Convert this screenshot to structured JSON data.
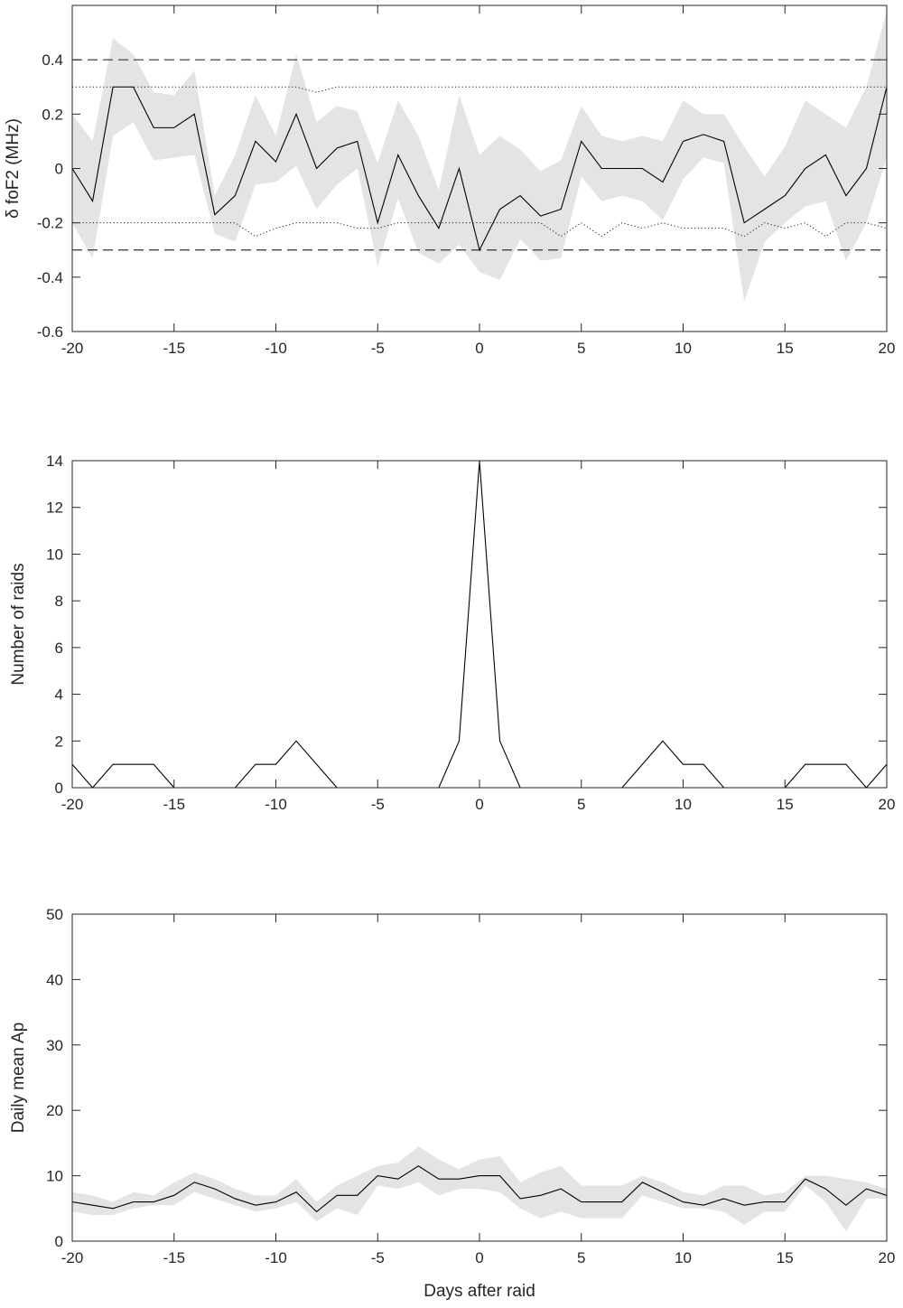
{
  "chart_data": [
    {
      "type": "line",
      "title": "",
      "xlabel": "",
      "ylabel": "δ foF2 (MHz)",
      "xlim": [
        -20,
        20
      ],
      "ylim": [
        -0.6,
        0.6
      ],
      "xticks": [
        -20,
        -15,
        -10,
        -5,
        0,
        5,
        10,
        15,
        20
      ],
      "yticks": [
        -0.6,
        -0.4,
        -0.2,
        0,
        0.2,
        0.4
      ],
      "ytick_labels": [
        "-0.6",
        "-0.4",
        "-0.2",
        "0",
        "0.2",
        "0.4"
      ],
      "grid": false,
      "x": [
        -20,
        -19,
        -18,
        -17,
        -16,
        -15,
        -14,
        -13,
        -12,
        -11,
        -10,
        -9,
        -8,
        -7,
        -6,
        -5,
        -4,
        -3,
        -2,
        -1,
        0,
        1,
        2,
        3,
        4,
        5,
        6,
        7,
        8,
        9,
        10,
        11,
        12,
        13,
        14,
        15,
        16,
        17,
        18,
        19,
        20
      ],
      "series": [
        {
          "role": "median",
          "style": "solid",
          "values": [
            0,
            -0.12,
            0.3,
            0.3,
            0.15,
            0.15,
            0.2,
            -0.17,
            -0.1,
            0.1,
            0.025,
            0.2,
            0,
            0.075,
            0.1,
            -0.2,
            0.05,
            -0.1,
            -0.22,
            0,
            -0.3,
            -0.15,
            -0.1,
            -0.175,
            -0.15,
            0.1,
            0,
            0,
            0,
            -0.05,
            0.1,
            0.125,
            0.1,
            -0.2,
            -0.15,
            -0.1,
            0,
            0.05,
            -0.1,
            0,
            0.3
          ]
        },
        {
          "role": "band-upper",
          "style": "shaded",
          "values": [
            0.2,
            0.1,
            0.48,
            0.42,
            0.28,
            0.27,
            0.36,
            -0.1,
            0.05,
            0.27,
            0.12,
            0.42,
            0.17,
            0.23,
            0.21,
            0.02,
            0.25,
            0.12,
            -0.08,
            0.27,
            0.05,
            0.12,
            0.07,
            -0.01,
            0.03,
            0.23,
            0.12,
            0.1,
            0.12,
            0.1,
            0.25,
            0.2,
            0.2,
            0.08,
            -0.03,
            0.08,
            0.25,
            0.2,
            0.15,
            0.3,
            0.58
          ]
        },
        {
          "role": "band-lower",
          "style": "shaded",
          "values": [
            -0.2,
            -0.33,
            0.12,
            0.17,
            0.03,
            0.04,
            0.05,
            -0.24,
            -0.27,
            -0.06,
            -0.05,
            0.01,
            -0.15,
            -0.06,
            0,
            -0.36,
            -0.11,
            -0.31,
            -0.35,
            -0.28,
            -0.38,
            -0.41,
            -0.26,
            -0.34,
            -0.33,
            -0.03,
            -0.12,
            -0.1,
            -0.12,
            -0.19,
            -0.04,
            0.04,
            0.02,
            -0.49,
            -0.27,
            -0.2,
            -0.14,
            -0.12,
            -0.34,
            -0.2,
            0.04
          ]
        },
        {
          "role": "upper-quartile-threshold",
          "style": "dotted",
          "values": [
            0.3,
            0.3,
            0.3,
            0.3,
            0.3,
            0.3,
            0.3,
            0.3,
            0.3,
            0.3,
            0.3,
            0.3,
            0.28,
            0.3,
            0.3,
            0.3,
            0.3,
            0.3,
            0.3,
            0.3,
            0.3,
            0.3,
            0.3,
            0.3,
            0.3,
            0.3,
            0.3,
            0.3,
            0.3,
            0.3,
            0.3,
            0.3,
            0.3,
            0.3,
            0.3,
            0.3,
            0.3,
            0.3,
            0.3,
            0.3,
            0.3
          ]
        },
        {
          "role": "lower-quartile-threshold",
          "style": "dotted",
          "values": [
            -0.2,
            -0.2,
            -0.2,
            -0.2,
            -0.2,
            -0.2,
            -0.2,
            -0.2,
            -0.2,
            -0.25,
            -0.22,
            -0.2,
            -0.2,
            -0.2,
            -0.22,
            -0.22,
            -0.2,
            -0.2,
            -0.2,
            -0.2,
            -0.2,
            -0.2,
            -0.2,
            -0.2,
            -0.25,
            -0.2,
            -0.25,
            -0.2,
            -0.22,
            -0.2,
            -0.22,
            -0.22,
            -0.22,
            -0.25,
            -0.2,
            -0.22,
            -0.2,
            -0.25,
            -0.2,
            -0.2,
            -0.22
          ]
        }
      ],
      "reference_lines": [
        0.4,
        -0.3
      ]
    },
    {
      "type": "line",
      "title": "",
      "xlabel": "",
      "ylabel": "Number of raids",
      "xlim": [
        -20,
        20
      ],
      "ylim": [
        0,
        14
      ],
      "xticks": [
        -20,
        -15,
        -10,
        -5,
        0,
        5,
        10,
        15,
        20
      ],
      "yticks": [
        0,
        2,
        4,
        6,
        8,
        10,
        12,
        14
      ],
      "ytick_labels": [
        "0",
        "2",
        "4",
        "6",
        "8",
        "10",
        "12",
        "14"
      ],
      "grid": false,
      "x": [
        -20,
        -19,
        -18,
        -17,
        -16,
        -15,
        -14,
        -13,
        -12,
        -11,
        -10,
        -9,
        -8,
        -7,
        -6,
        -5,
        -4,
        -3,
        -2,
        -1,
        0,
        1,
        2,
        3,
        4,
        5,
        6,
        7,
        8,
        9,
        10,
        11,
        12,
        13,
        14,
        15,
        16,
        17,
        18,
        19,
        20
      ],
      "series": [
        {
          "role": "count",
          "style": "solid",
          "values": [
            1,
            0,
            1,
            1,
            1,
            0,
            0,
            0,
            0,
            1,
            1,
            2,
            1,
            0,
            0,
            0,
            0,
            0,
            0,
            2,
            14,
            2,
            0,
            0,
            0,
            0,
            0,
            0,
            1,
            2,
            1,
            1,
            0,
            0,
            0,
            0,
            1,
            1,
            1,
            0,
            1
          ]
        }
      ]
    },
    {
      "type": "line",
      "title": "",
      "xlabel": "Days after raid",
      "ylabel": "Daily mean Ap",
      "xlim": [
        -20,
        20
      ],
      "ylim": [
        0,
        50
      ],
      "xticks": [
        -20,
        -15,
        -10,
        -5,
        0,
        5,
        10,
        15,
        20
      ],
      "yticks": [
        0,
        10,
        20,
        30,
        40,
        50
      ],
      "ytick_labels": [
        "0",
        "10",
        "20",
        "30",
        "40",
        "50"
      ],
      "grid": false,
      "x": [
        -20,
        -19,
        -18,
        -17,
        -16,
        -15,
        -14,
        -13,
        -12,
        -11,
        -10,
        -9,
        -8,
        -7,
        -6,
        -5,
        -4,
        -3,
        -2,
        -1,
        0,
        1,
        2,
        3,
        4,
        5,
        6,
        7,
        8,
        9,
        10,
        11,
        12,
        13,
        14,
        15,
        16,
        17,
        18,
        19,
        20
      ],
      "series": [
        {
          "role": "median",
          "style": "solid",
          "values": [
            6,
            5.5,
            5,
            6,
            6,
            7,
            9,
            8,
            6.5,
            5.5,
            6,
            7.5,
            4.5,
            7,
            7,
            10,
            9.5,
            11.5,
            9.5,
            9.5,
            10,
            10,
            6.5,
            7,
            8,
            6,
            6,
            6,
            9,
            7.5,
            6,
            5.5,
            6.5,
            5.5,
            6,
            6,
            9.5,
            8,
            5.5,
            8,
            7
          ]
        },
        {
          "role": "band-upper",
          "style": "shaded",
          "values": [
            7.5,
            7,
            6,
            7.5,
            7,
            9,
            10.5,
            9.5,
            8,
            7,
            7,
            9.5,
            6,
            8.5,
            10,
            11.5,
            12,
            14.5,
            12.5,
            11,
            12.5,
            13,
            9,
            10.5,
            11.5,
            8.5,
            8.5,
            8.5,
            10,
            9,
            7.5,
            7,
            8.5,
            8.5,
            7,
            7.5,
            10,
            10,
            9.5,
            9,
            8
          ]
        },
        {
          "role": "band-lower",
          "style": "shaded",
          "values": [
            4.5,
            4,
            4,
            5,
            5.5,
            5.5,
            7.5,
            6.5,
            5.5,
            4.5,
            5,
            6,
            3,
            5,
            4,
            8.5,
            8,
            9,
            7,
            8,
            8,
            7.5,
            5,
            3.5,
            4.5,
            3.5,
            3.5,
            3.5,
            7,
            6,
            5,
            5,
            4.5,
            2.5,
            4.5,
            4.5,
            8.5,
            6,
            1.5,
            6.5,
            6.5
          ]
        }
      ]
    }
  ]
}
